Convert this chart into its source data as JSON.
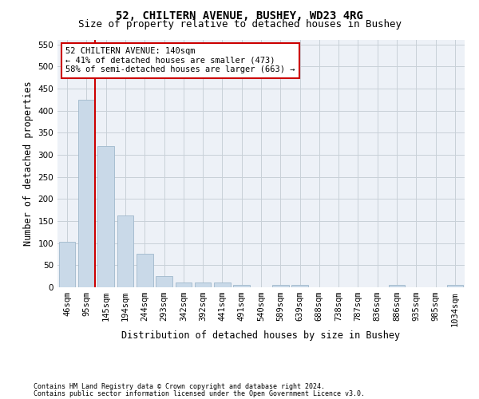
{
  "title1": "52, CHILTERN AVENUE, BUSHEY, WD23 4RG",
  "title2": "Size of property relative to detached houses in Bushey",
  "xlabel": "Distribution of detached houses by size in Bushey",
  "ylabel": "Number of detached properties",
  "footnote1": "Contains HM Land Registry data © Crown copyright and database right 2024.",
  "footnote2": "Contains public sector information licensed under the Open Government Licence v3.0.",
  "bar_labels": [
    "46sqm",
    "95sqm",
    "145sqm",
    "194sqm",
    "244sqm",
    "293sqm",
    "342sqm",
    "392sqm",
    "441sqm",
    "491sqm",
    "540sqm",
    "589sqm",
    "639sqm",
    "688sqm",
    "738sqm",
    "787sqm",
    "836sqm",
    "886sqm",
    "935sqm",
    "985sqm",
    "1034sqm"
  ],
  "bar_values": [
    103,
    425,
    320,
    163,
    76,
    25,
    11,
    11,
    11,
    6,
    0,
    5,
    5,
    0,
    0,
    0,
    0,
    5,
    0,
    0,
    5
  ],
  "bar_color": "#c9d9e8",
  "bar_edge_color": "#a0b8cc",
  "grid_color": "#c8d0d8",
  "ylim": [
    0,
    560
  ],
  "yticks": [
    0,
    50,
    100,
    150,
    200,
    250,
    300,
    350,
    400,
    450,
    500,
    550
  ],
  "vline_color": "#cc0000",
  "annotation_text": "52 CHILTERN AVENUE: 140sqm\n← 41% of detached houses are smaller (473)\n58% of semi-detached houses are larger (663) →",
  "annotation_box_color": "#ffffff",
  "annotation_box_edge": "#cc0000",
  "bg_color": "#edf1f7",
  "title1_fontsize": 10,
  "title2_fontsize": 9,
  "xlabel_fontsize": 8.5,
  "ylabel_fontsize": 8.5,
  "tick_fontsize": 7.5,
  "annot_fontsize": 7.5,
  "footnote_fontsize": 6.0
}
